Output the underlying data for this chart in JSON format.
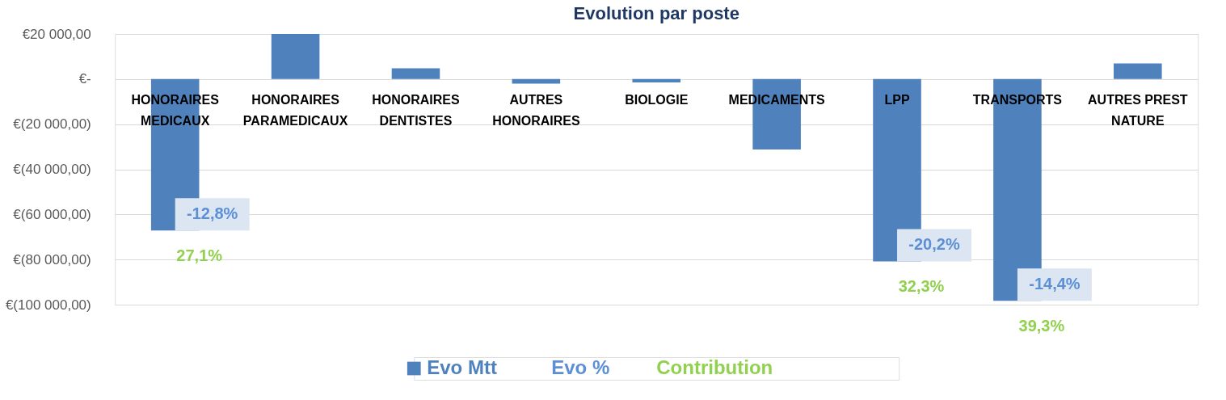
{
  "chart_data": {
    "type": "bar",
    "title": "Evolution par poste",
    "categories": [
      "HONORAIRES MEDICAUX",
      "HONORAIRES PARAMEDICAUX",
      "HONORAIRES DENTISTES",
      "AUTRES HONORAIRES",
      "BIOLOGIE",
      "MEDICAMENTS",
      "LPP",
      "TRANSPORTS",
      "AUTRES PREST NATURE"
    ],
    "series": [
      {
        "name": "Evo Mtt",
        "color": "#4f81bd",
        "values": [
          -67100,
          20000,
          4800,
          -2000,
          -1500,
          -31200,
          -80800,
          -98300,
          6900
        ]
      },
      {
        "name": "Evo %",
        "type": "scatter",
        "marker": "none",
        "color": "#5b8fd6",
        "values": [
          null,
          null,
          null,
          null,
          null,
          null,
          null,
          null,
          null
        ],
        "value_labels": [
          "-12,8%",
          null,
          null,
          null,
          null,
          null,
          "-20,2%",
          "-14,4%",
          null
        ]
      },
      {
        "name": "Contribution",
        "type": "scatter",
        "marker": "none",
        "color": "#92d050",
        "values": [
          null,
          null,
          null,
          null,
          null,
          null,
          null,
          null,
          null
        ],
        "value_labels": [
          "27,1%",
          null,
          null,
          null,
          null,
          null,
          "32,3%",
          "39,3%",
          null
        ]
      }
    ],
    "ylim": [
      -100000,
      20000
    ],
    "yticks": [
      {
        "value": 20000,
        "label": "€20 000,00"
      },
      {
        "value": 0,
        "label": "€-"
      },
      {
        "value": -20000,
        "label": "€(20 000,00)"
      },
      {
        "value": -40000,
        "label": "€(40 000,00)"
      },
      {
        "value": -60000,
        "label": "€(60 000,00)"
      },
      {
        "value": -80000,
        "label": "€(80 000,00)"
      },
      {
        "value": -100000,
        "label": "€(100 000,00)"
      }
    ],
    "grid": "y",
    "legend": "bottom"
  }
}
